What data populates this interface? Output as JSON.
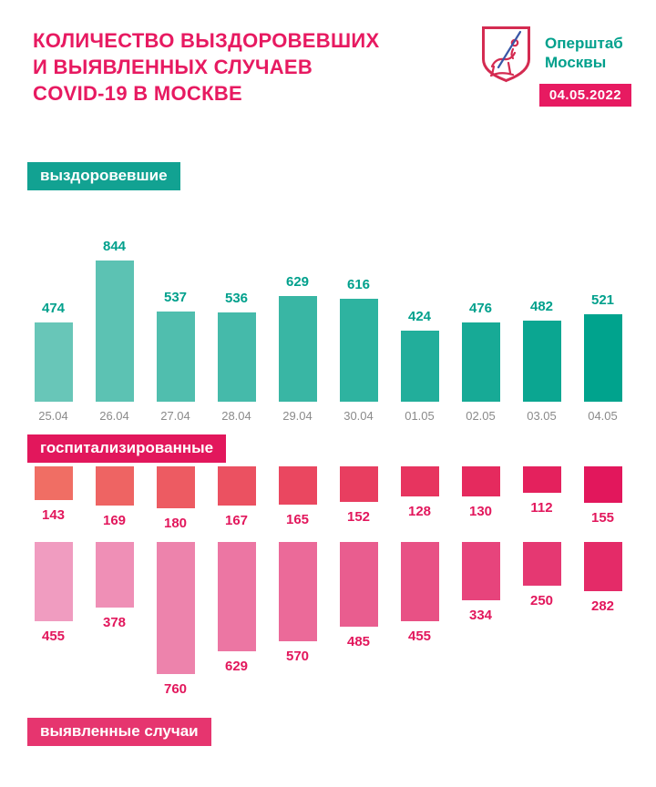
{
  "header": {
    "title_line1": "КОЛИЧЕСТВО ВЫЗДОРОВЕВШИХ",
    "title_line2": "И ВЫЯВЛЕННЫХ СЛУЧАЕВ",
    "title_line3": "COVID-19 В МОСКВЕ",
    "org_line1": "Оперштаб",
    "org_line2": "Москвы",
    "date_badge": "04.05.2022"
  },
  "sections": {
    "recovered_label": "выздоровевшие",
    "hospitalized_label": "госпитализированные",
    "detected_label": "выявленные случаи"
  },
  "chart_data": {
    "type": "bar",
    "categories": [
      "25.04",
      "26.04",
      "27.04",
      "28.04",
      "29.04",
      "30.04",
      "01.05",
      "02.05",
      "03.05",
      "04.05"
    ],
    "category_label_color": "#8A8A8A",
    "series": [
      {
        "name": "выздоровевшие",
        "key": "recovered",
        "direction": "up",
        "values": [
          474,
          844,
          537,
          536,
          629,
          616,
          424,
          476,
          482,
          521
        ],
        "value_color": "#00A08C",
        "bar_colors": [
          "#68C6B8",
          "#5CC2B3",
          "#50BEAE",
          "#45BAAA",
          "#39B6A4",
          "#2EB3A0",
          "#22AE9B",
          "#17AA96",
          "#0BA691",
          "#00A38D"
        ]
      },
      {
        "name": "госпитализированные",
        "key": "hospitalized",
        "direction": "down",
        "values": [
          143,
          169,
          180,
          167,
          165,
          152,
          128,
          130,
          112,
          155
        ],
        "value_color": "#E2175C",
        "bar_colors": [
          "#F06E64",
          "#EE6463",
          "#ED5B62",
          "#EB5161",
          "#EA4760",
          "#E83E60",
          "#E7345F",
          "#E52A5E",
          "#E4215D",
          "#E2175C"
        ]
      },
      {
        "name": "выявленные случаи",
        "key": "detected",
        "direction": "down",
        "values": [
          455,
          378,
          760,
          629,
          570,
          485,
          455,
          334,
          250,
          282
        ],
        "value_color": "#E2175C",
        "bar_colors": [
          "#F09CC0",
          "#EF8FB6",
          "#ED83AC",
          "#EC76A3",
          "#EB6A99",
          "#E95D8F",
          "#E85185",
          "#E7447C",
          "#E53872",
          "#E42B68"
        ]
      }
    ]
  },
  "colors": {
    "accent_pink": "#E71A61",
    "teal": "#00A08C",
    "recovered_label_bg": "#12A292",
    "hospitalized_label_bg": "#E2175C",
    "detected_label_bg": "#E6356F"
  }
}
